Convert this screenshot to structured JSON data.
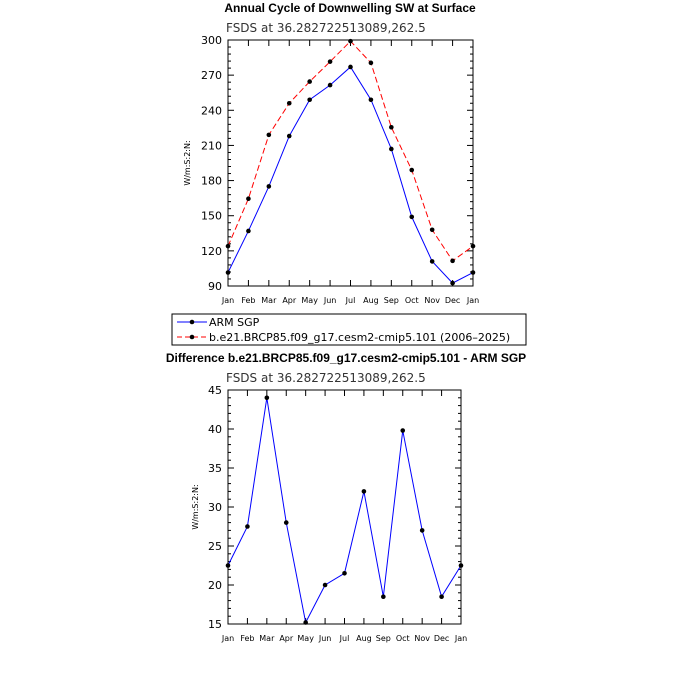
{
  "chart_data": [
    {
      "type": "line",
      "title": "Annual Cycle of Downwelling SW at Surface",
      "subtitle": "FSDS at 36.282722513089,262.5",
      "ylabel": "W/m:S:2:N:",
      "ylim": [
        90,
        300
      ],
      "yticks": [
        90,
        120,
        150,
        180,
        210,
        240,
        270,
        300
      ],
      "categories": [
        "Jan",
        "Feb",
        "Mar",
        "Apr",
        "May",
        "Jun",
        "Jul",
        "Aug",
        "Sep",
        "Oct",
        "Nov",
        "Dec",
        "Jan"
      ],
      "series": [
        {
          "name": "ARM SGP",
          "color": "#0000ff",
          "dash": "solid",
          "values": [
            101.5,
            137,
            175,
            218,
            249,
            261.5,
            277,
            249,
            207,
            149,
            111,
            92.5,
            101.5
          ]
        },
        {
          "name": "b.e21.BRCP85.f09_g17.cesm2-cmip5.101 (2006–2025)",
          "color": "#ff0000",
          "dash": "dashed",
          "values": [
            124,
            164.5,
            219,
            246,
            264.5,
            281.5,
            299,
            280.5,
            225.5,
            189,
            138,
            111.5,
            124
          ]
        }
      ],
      "legend": "below"
    },
    {
      "type": "line",
      "title": "Difference b.e21.BRCP85.f09_g17.cesm2-cmip5.101 - ARM SGP",
      "subtitle": "FSDS at 36.282722513089,262.5",
      "ylabel": "W/m:S:2:N:",
      "ylim": [
        15,
        45
      ],
      "yticks": [
        15,
        20,
        25,
        30,
        35,
        40,
        45
      ],
      "categories": [
        "Jan",
        "Feb",
        "Mar",
        "Apr",
        "May",
        "Jun",
        "Jul",
        "Aug",
        "Sep",
        "Oct",
        "Nov",
        "Dec",
        "Jan"
      ],
      "series": [
        {
          "color": "#0000ff",
          "dash": "solid",
          "values": [
            22.5,
            27.5,
            44,
            28,
            15.2,
            20,
            21.5,
            32,
            18.5,
            39.8,
            27,
            18.5,
            22.5
          ]
        }
      ]
    }
  ]
}
